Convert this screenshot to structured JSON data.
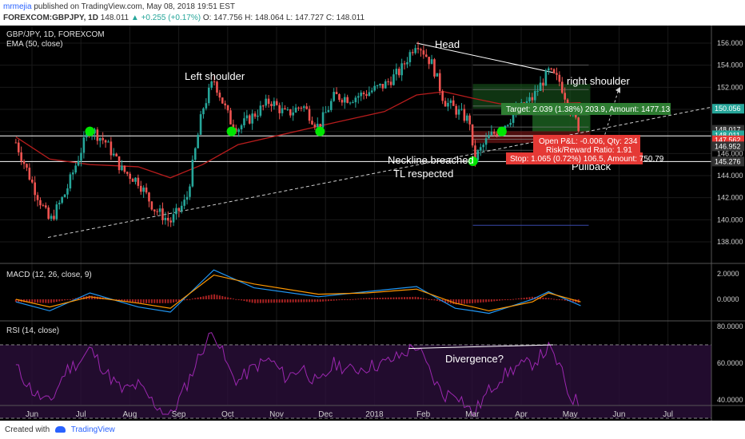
{
  "header": {
    "author": "mrmejia",
    "published": "published on TradingView.com, May 08, 2018 19:51 EST",
    "symbol": "FOREXCOM:GBPJPY, 1D",
    "last": "148.011",
    "change": "+0.255 (+0.17%)",
    "ohlc": "O: 147.756 H: 148.064 L: 147.727 C: 148.011"
  },
  "chart_data": {
    "type": "candlestick",
    "title": "GBP/JPY, 1D, FOREXCOM",
    "indicator_label": "EMA (50, close)",
    "price_axis": {
      "min": 138,
      "max": 156,
      "ticks": [
        "156.000",
        "154.000",
        "152.000",
        "150.000",
        "148.000",
        "146.000",
        "144.000",
        "142.000",
        "140.000",
        "138.000"
      ]
    },
    "time_axis": [
      "Jun",
      "Jul",
      "Aug",
      "Sep",
      "Oct",
      "Nov",
      "Dec",
      "2018",
      "Feb",
      "Mar",
      "Apr",
      "May",
      "Jun",
      "Jul"
    ],
    "price_labels": [
      {
        "value": "150.056",
        "price": 150.056,
        "color": "#26a69a"
      },
      {
        "value": "148.017",
        "price": 148.15,
        "color": "#333333"
      },
      {
        "value": "148.011",
        "price": 147.65,
        "color": "#26a69a"
      },
      {
        "value": "147.562",
        "price": 147.2,
        "color": "#e53935"
      },
      {
        "value": "146.952",
        "price": 146.65,
        "color": "#333333"
      },
      {
        "value": "145.276",
        "price": 145.276,
        "color": "#333333"
      }
    ],
    "annotations": [
      "Head",
      "Left shoulder",
      "right shoulder",
      "Neckline breached",
      "TL respected",
      "Pullback"
    ],
    "position_tool": {
      "target": "Target: 2.039 (1.38%) 203.9, Amount: 1477.13",
      "open_pnl": "Open P&L: -0.006, Qty: 234",
      "risk_reward": "Risk/Reward Ratio: 1.91",
      "stop": "Stop: 1.065 (0.72%) 106.5, Amount: 750.79"
    },
    "neckline_price": 147.6,
    "pivot_points": [
      {
        "date": "Jul 07",
        "price": 148.0
      },
      {
        "date": "Oct 03",
        "price": 148.0
      },
      {
        "date": "Nov 27",
        "price": 148.0
      },
      {
        "date": "Mar 02",
        "price": 145.3
      },
      {
        "date": "Mar 20",
        "price": 148.0
      }
    ],
    "price_path": [
      [
        "May 22",
        147.0
      ],
      [
        "Jun 02",
        143.0
      ],
      [
        "Jun 12",
        139.8
      ],
      [
        "Jun 22",
        142.5
      ],
      [
        "Jul 02",
        146.5
      ],
      [
        "Jul 07",
        148.3
      ],
      [
        "Jul 17",
        147.0
      ],
      [
        "Jul 27",
        144.5
      ],
      [
        "Aug 06",
        143.5
      ],
      [
        "Aug 16",
        141.0
      ],
      [
        "Aug 26",
        139.8
      ],
      [
        "Sep 05",
        141.8
      ],
      [
        "Sep 15",
        150.0
      ],
      [
        "Sep 22",
        152.7
      ],
      [
        "Oct 02",
        149.0
      ],
      [
        "Oct 07",
        148.3
      ],
      [
        "Oct 17",
        149.5
      ],
      [
        "Oct 27",
        150.8
      ],
      [
        "Nov 06",
        149.5
      ],
      [
        "Nov 16",
        150.4
      ],
      [
        "Nov 26",
        148.4
      ],
      [
        "Dec 06",
        151.2
      ],
      [
        "Dec 16",
        151.0
      ],
      [
        "Dec 26",
        151.5
      ],
      [
        "Jan 06",
        152.2
      ],
      [
        "Jan 16",
        153.5
      ],
      [
        "Jan 26",
        156.2
      ],
      [
        "Feb 05",
        154.0
      ],
      [
        "Feb 12",
        150.8
      ],
      [
        "Feb 19",
        150.0
      ],
      [
        "Mar 01",
        148.8
      ],
      [
        "Mar 02",
        145.3
      ],
      [
        "Mar 12",
        147.5
      ],
      [
        "Mar 19",
        148.2
      ],
      [
        "Mar 29",
        149.8
      ],
      [
        "Apr 08",
        151.0
      ],
      [
        "Apr 18",
        153.4
      ],
      [
        "Apr 25",
        152.5
      ],
      [
        "May 01",
        150.2
      ],
      [
        "May 08",
        148.0
      ]
    ],
    "ema_path": [
      [
        "May 22",
        147.5
      ],
      [
        "Jun 12",
        145.5
      ],
      [
        "Jul 07",
        145.0
      ],
      [
        "Aug 06",
        144.8
      ],
      [
        "Aug 26",
        143.8
      ],
      [
        "Sep 15",
        145.0
      ],
      [
        "Oct 07",
        146.8
      ],
      [
        "Nov 06",
        147.8
      ],
      [
        "Dec 06",
        148.8
      ],
      [
        "Jan 06",
        149.8
      ],
      [
        "Jan 26",
        151.3
      ],
      [
        "Feb 12",
        151.6
      ],
      [
        "Mar 02",
        151.0
      ],
      [
        "Mar 29",
        150.2
      ],
      [
        "Apr 18",
        150.5
      ],
      [
        "May 08",
        150.6
      ]
    ],
    "macd": {
      "label": "MACD (12, 26, close, 9)",
      "axis_ticks": [
        "2.0000",
        "0.0000"
      ],
      "macd_path": [
        [
          "May 22",
          -0.2
        ],
        [
          "Jun 12",
          -0.9
        ],
        [
          "Jul 07",
          0.5
        ],
        [
          "Aug 06",
          -0.6
        ],
        [
          "Aug 26",
          -1.0
        ],
        [
          "Sep 22",
          2.3
        ],
        [
          "Oct 17",
          0.9
        ],
        [
          "Nov 26",
          0.2
        ],
        [
          "Dec 26",
          0.6
        ],
        [
          "Jan 26",
          1.0
        ],
        [
          "Feb 19",
          -0.7
        ],
        [
          "Mar 02",
          -0.9
        ],
        [
          "Mar 12",
          -1.1
        ],
        [
          "Apr 08",
          0.0
        ],
        [
          "Apr 18",
          0.6
        ],
        [
          "May 08",
          -0.5
        ]
      ],
      "signal_path": [
        [
          "May 22",
          0.0
        ],
        [
          "Jun 12",
          -0.6
        ],
        [
          "Jul 07",
          0.2
        ],
        [
          "Aug 06",
          -0.3
        ],
        [
          "Aug 26",
          -0.7
        ],
        [
          "Sep 22",
          1.9
        ],
        [
          "Oct 17",
          1.2
        ],
        [
          "Nov 26",
          0.4
        ],
        [
          "Dec 26",
          0.5
        ],
        [
          "Jan 26",
          0.8
        ],
        [
          "Feb 19",
          -0.3
        ],
        [
          "Mar 02",
          -0.6
        ],
        [
          "Mar 12",
          -0.9
        ],
        [
          "Apr 08",
          -0.2
        ],
        [
          "Apr 18",
          0.5
        ],
        [
          "May 08",
          -0.2
        ]
      ]
    },
    "rsi": {
      "label": "RSI (14, close)",
      "axis_ticks": [
        "80.0000",
        "60.0000",
        "40.0000"
      ],
      "upper": 70,
      "lower": 30,
      "annotation": "Divergence?",
      "rsi_path": [
        [
          "May 22",
          58
        ],
        [
          "Jun 02",
          44
        ],
        [
          "Jun 12",
          38
        ],
        [
          "Jun 22",
          56
        ],
        [
          "Jul 02",
          62
        ],
        [
          "Jul 07",
          68
        ],
        [
          "Jul 17",
          55
        ],
        [
          "Jul 27",
          45
        ],
        [
          "Aug 06",
          48
        ],
        [
          "Aug 16",
          38
        ],
        [
          "Aug 26",
          31
        ],
        [
          "Sep 05",
          48
        ],
        [
          "Sep 15",
          68
        ],
        [
          "Sep 22",
          78
        ],
        [
          "Oct 02",
          55
        ],
        [
          "Oct 07",
          50
        ],
        [
          "Oct 17",
          58
        ],
        [
          "Oct 27",
          62
        ],
        [
          "Nov 06",
          52
        ],
        [
          "Nov 16",
          58
        ],
        [
          "Nov 26",
          48
        ],
        [
          "Dec 06",
          60
        ],
        [
          "Dec 16",
          56
        ],
        [
          "Dec 26",
          58
        ],
        [
          "Jan 06",
          60
        ],
        [
          "Jan 16",
          64
        ],
        [
          "Jan 26",
          70
        ],
        [
          "Feb 05",
          52
        ],
        [
          "Feb 12",
          42
        ],
        [
          "Feb 19",
          45
        ],
        [
          "Mar 02",
          32
        ],
        [
          "Mar 12",
          45
        ],
        [
          "Mar 19",
          52
        ],
        [
          "Mar 29",
          58
        ],
        [
          "Apr 08",
          60
        ],
        [
          "Apr 18",
          68
        ],
        [
          "Apr 25",
          58
        ],
        [
          "May 01",
          42
        ],
        [
          "May 08",
          38
        ]
      ]
    }
  },
  "footer": {
    "created_with": "Created with",
    "brand": "TradingView"
  },
  "colors": {
    "background": "#000000",
    "up": "#26a69a",
    "down": "#ef5350",
    "ema": "#b71c1c",
    "macd": "#2196f3",
    "signal": "#ff9800",
    "rsi": "#9c27b0",
    "pivot": "#00e600"
  }
}
